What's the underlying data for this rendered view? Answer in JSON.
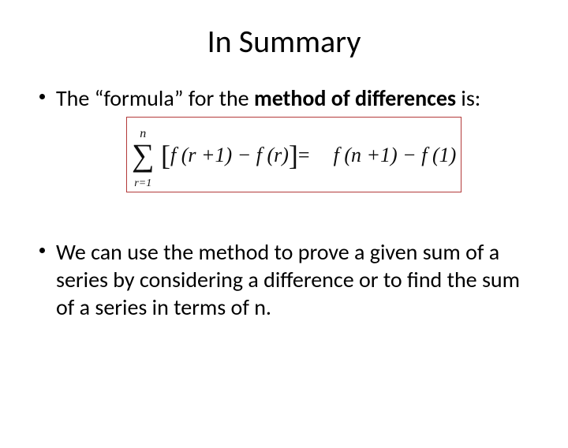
{
  "title": "In Summary",
  "bullet1": {
    "prefix": "The “formula” for the ",
    "bold": "method of differences",
    "suffix": " is:"
  },
  "formula": {
    "sumUpper": "n",
    "sumLower": "r=1",
    "lhsInner": "f (r +1) − f (r)",
    "eq": "=",
    "rhs": "f (n +1) − f (1)"
  },
  "bullet2": "We can use the method to prove a given sum of a series by considering a difference or to find the sum of a series in terms of n.",
  "colors": {
    "background": "#ffffff",
    "text": "#000000",
    "formulaBorder": "#b33a3a"
  },
  "font": {
    "titleSize": 40,
    "bodySize": 28,
    "formulaSize": 26
  }
}
